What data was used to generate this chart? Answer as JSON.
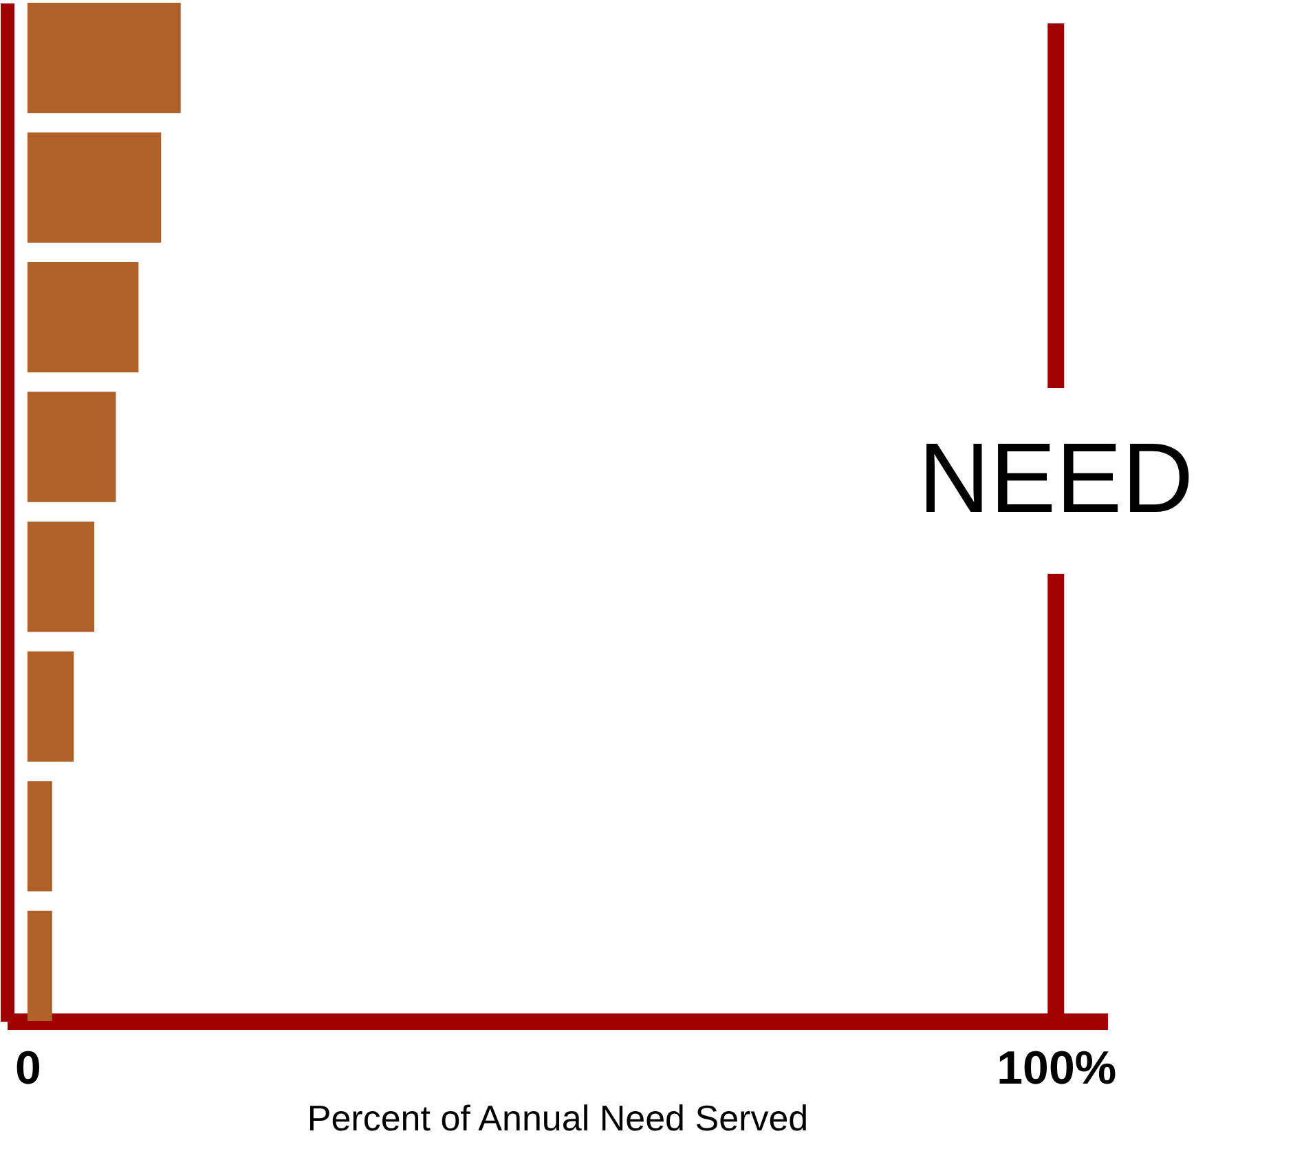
{
  "chart_data": {
    "type": "bar",
    "orientation": "horizontal",
    "xlabel": "Percent of Annual Need Served",
    "categories": [
      null,
      null,
      null,
      null,
      null,
      null,
      null,
      null
    ],
    "values": [
      14.9,
      13.0,
      10.8,
      8.6,
      6.5,
      4.5,
      2.4,
      2.4
    ],
    "color": "#b0612a",
    "xlim": [
      -2,
      105
    ],
    "xticks": [
      0,
      {
        "value": 100,
        "label": "100%"
      }
    ],
    "ref_lines": [
      {
        "axis": "x",
        "value": 100,
        "label": "NEED",
        "color": "#a00000"
      }
    ],
    "grid": false
  }
}
